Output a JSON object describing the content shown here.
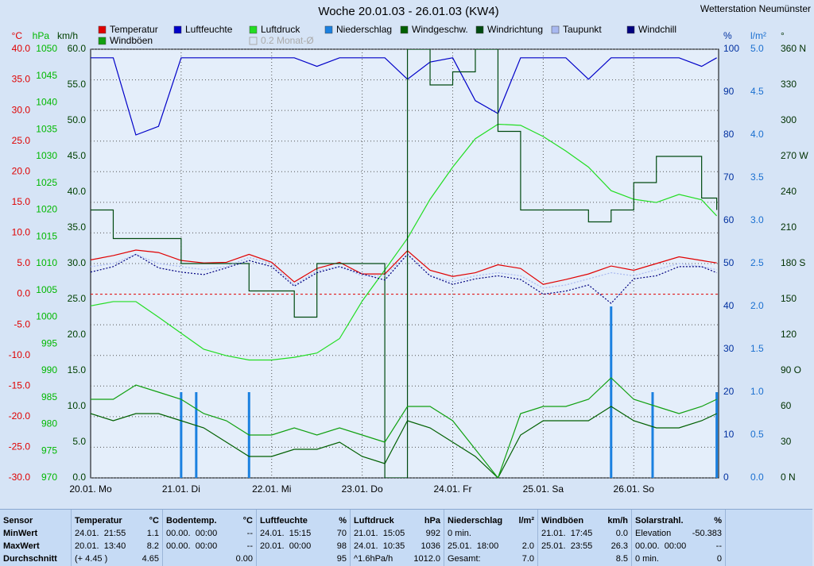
{
  "chart_data": {
    "type": "line",
    "title": "Woche 20.01.03 - 26.01.03 (KW4)",
    "station": "Wetterstation Neumünster",
    "xlim": [
      0,
      166.5
    ],
    "xticks": [
      {
        "value": 0,
        "label": "20.01. Mo"
      },
      {
        "value": 24,
        "label": "21.01. Di"
      },
      {
        "value": 48,
        "label": "22.01. Mi"
      },
      {
        "value": 72,
        "label": "23.01. Do"
      },
      {
        "value": 96,
        "label": "24.01. Fr"
      },
      {
        "value": 120,
        "label": "25.01. Sa"
      },
      {
        "value": 144,
        "label": "26.01. So"
      }
    ],
    "x": [
      0,
      6,
      12,
      18,
      24,
      30,
      36,
      42,
      48,
      54,
      60,
      66,
      72,
      78,
      84,
      90,
      96,
      102,
      108,
      114,
      120,
      126,
      132,
      138,
      144,
      150,
      156,
      162,
      166
    ],
    "grid": true,
    "grid_axis": 0,
    "axes": [
      {
        "unit": "°C",
        "side": "left",
        "color": "#e00000",
        "lim": [
          -30,
          40
        ],
        "ticks": [
          {
            "value": 40,
            "label": "40.0"
          },
          {
            "value": 35,
            "label": "35.0"
          },
          {
            "value": 30,
            "label": "30.0"
          },
          {
            "value": 25,
            "label": "25.0"
          },
          {
            "value": 20,
            "label": "20.0"
          },
          {
            "value": 15,
            "label": "15.0"
          },
          {
            "value": 10,
            "label": "10.0"
          },
          {
            "value": 5,
            "label": "5.0"
          },
          {
            "value": 0,
            "label": "0.0"
          },
          {
            "value": -5,
            "label": "-5.0"
          },
          {
            "value": -10,
            "label": "-10.0"
          },
          {
            "value": -15,
            "label": "-15.0"
          },
          {
            "value": -20,
            "label": "-20.0"
          },
          {
            "value": -25,
            "label": "-25.0"
          },
          {
            "value": -30,
            "label": "-30.0"
          }
        ]
      },
      {
        "unit": "hPa",
        "side": "left",
        "color": "#00b800",
        "lim": [
          970,
          1050
        ],
        "ticks": [
          1050,
          1045,
          1040,
          1035,
          1030,
          1025,
          1020,
          1015,
          1010,
          1005,
          1000,
          995,
          990,
          985,
          980,
          975,
          970
        ]
      },
      {
        "unit": "km/h",
        "side": "left",
        "color": "#004000",
        "lim": [
          0,
          60
        ],
        "ticks": [
          {
            "value": 60,
            "label": "60.0"
          },
          {
            "value": 55,
            "label": "55.0"
          },
          {
            "value": 50,
            "label": "50.0"
          },
          {
            "value": 45,
            "label": "45.0"
          },
          {
            "value": 40,
            "label": "40.0"
          },
          {
            "value": 35,
            "label": "35.0"
          },
          {
            "value": 30,
            "label": "30.0"
          },
          {
            "value": 25,
            "label": "25.0"
          },
          {
            "value": 20,
            "label": "20.0"
          },
          {
            "value": 15,
            "label": "15.0"
          },
          {
            "value": 10,
            "label": "10.0"
          },
          {
            "value": 5,
            "label": "5.0"
          },
          {
            "value": 0,
            "label": "0.0"
          }
        ]
      },
      {
        "unit": "%",
        "side": "right",
        "color": "#0030a0",
        "lim": [
          0,
          100
        ],
        "ticks": [
          100,
          90,
          80,
          70,
          60,
          50,
          40,
          30,
          20,
          10,
          0
        ]
      },
      {
        "unit": "l/m²",
        "side": "right",
        "color": "#1a6fd0",
        "lim": [
          0,
          5
        ],
        "ticks": [
          {
            "value": 5,
            "label": "5.0"
          },
          {
            "value": 4.5,
            "label": "4.5"
          },
          {
            "value": 4,
            "label": "4.0"
          },
          {
            "value": 3.5,
            "label": "3.5"
          },
          {
            "value": 3,
            "label": "3.0"
          },
          {
            "value": 2.5,
            "label": "2.5"
          },
          {
            "value": 2,
            "label": "2.0"
          },
          {
            "value": 1.5,
            "label": "1.5"
          },
          {
            "value": 1,
            "label": "1.0"
          },
          {
            "value": 0.5,
            "label": "0.5"
          },
          {
            "value": 0,
            "label": "0.0"
          }
        ]
      },
      {
        "unit": "°",
        "side": "right",
        "color": "#003000",
        "lim": [
          0,
          360
        ],
        "ticks": [
          {
            "value": 360,
            "label": "360 N"
          },
          330,
          300,
          {
            "value": 270,
            "label": "270 W"
          },
          240,
          210,
          {
            "value": 180,
            "label": "180 S"
          },
          150,
          120,
          {
            "value": 90,
            "label": "90 O"
          },
          60,
          30,
          {
            "value": 0,
            "label": "0   N"
          }
        ]
      }
    ],
    "series": [
      {
        "name": "Temperatur",
        "color": "#e00000",
        "axis": 0,
        "style": "line",
        "values": [
          5.6,
          6.3,
          7.2,
          6.8,
          5.5,
          5.1,
          5.2,
          6.5,
          5.2,
          2.0,
          4.2,
          5.2,
          3.3,
          3.3,
          7.1,
          3.9,
          2.9,
          3.5,
          4.8,
          4.2,
          1.6,
          2.4,
          3.3,
          4.6,
          3.9,
          5.0,
          6.1,
          5.5,
          5.1
        ]
      },
      {
        "name": "Luftfeuchte",
        "color": "#0000c8",
        "axis": 3,
        "style": "line",
        "values": [
          98,
          98,
          80,
          82,
          98,
          98,
          98,
          98,
          98,
          98,
          96,
          98,
          98,
          98,
          93,
          97,
          98,
          88,
          85,
          98,
          98,
          98,
          93,
          98,
          98,
          98,
          98,
          96,
          98
        ]
      },
      {
        "name": "Luftdruck",
        "color": "#22dd22",
        "axis": 1,
        "style": "line",
        "values": [
          1002.1,
          1002.9,
          1002.9,
          1000,
          997,
          994,
          992.8,
          992,
          992,
          992.5,
          993.3,
          996,
          1003,
          1008.8,
          1014.7,
          1022,
          1028,
          1033.3,
          1036,
          1035.8,
          1033.7,
          1031,
          1028,
          1023.6,
          1022,
          1021.4,
          1022.9,
          1021.9,
          1018.9
        ]
      },
      {
        "name": "Niederschlag",
        "color": "#1a80e0",
        "axis": 4,
        "style": "bar",
        "x": [
          24,
          28,
          42,
          138,
          149,
          166
        ],
        "values": [
          1,
          1,
          1,
          2,
          1,
          1
        ]
      },
      {
        "name": "Windgeschw.",
        "color": "#006000",
        "axis": 2,
        "style": "line",
        "values": [
          9,
          8,
          9,
          9,
          8,
          7,
          5,
          3,
          3,
          4,
          4,
          5,
          3,
          2,
          8,
          7,
          5,
          3,
          0,
          6,
          8,
          8,
          8,
          10,
          8,
          7,
          7,
          8,
          9
        ]
      },
      {
        "name": "Windrichtung",
        "color": "#004a10",
        "axis": 5,
        "style": "step",
        "values": [
          225,
          201,
          201,
          201,
          180,
          180,
          180,
          157,
          157,
          135,
          180,
          180,
          180,
          0,
          360,
          330,
          341,
          360,
          291,
          225,
          225,
          225,
          215,
          225,
          248,
          270,
          270,
          235,
          225
        ]
      },
      {
        "name": "Taupunkt",
        "color": "#a8b8f0",
        "axis": 0,
        "style": "dotted",
        "values": [
          4.5,
          5,
          6.5,
          5,
          4.5,
          4,
          4.5,
          6,
          5,
          1.5,
          3.8,
          4.5,
          3,
          3,
          6.5,
          3,
          2,
          3,
          3.5,
          3,
          1,
          1.5,
          2.5,
          3.5,
          3,
          4,
          5,
          4.5,
          4
        ]
      },
      {
        "name": "Windchill",
        "color": "#000080",
        "axis": 0,
        "style": "dotted",
        "values": [
          3.6,
          4.5,
          6.5,
          4.3,
          3.6,
          3.2,
          4.3,
          5.5,
          4.5,
          1.3,
          3.5,
          4.5,
          3.3,
          2.3,
          6.5,
          3,
          1.6,
          2.5,
          3,
          2.4,
          0,
          0.5,
          1.5,
          -1.5,
          2.5,
          3,
          4.5,
          4.5,
          3.5
        ]
      },
      {
        "name": "Windböen",
        "color": "#10a010",
        "axis": 2,
        "style": "line",
        "values": [
          11,
          11,
          13,
          12,
          11,
          9,
          8,
          6,
          6,
          7,
          6,
          7,
          6,
          5,
          10,
          10,
          8,
          4,
          0,
          9,
          10,
          10,
          11,
          14,
          11,
          10,
          9,
          10,
          11
        ]
      }
    ],
    "legend_extra": "0.2 Monat-Ø"
  },
  "table": {
    "columns": [
      {
        "title": "Sensor",
        "rows": [
          {
            "left": "MinWert"
          },
          {
            "left": "MaxWert"
          },
          {
            "left": "Durchschnitt"
          }
        ]
      },
      {
        "title": "Temperatur",
        "unit": "°C",
        "rows": [
          {
            "left": "24.01.  21:55",
            "right": "1.1"
          },
          {
            "left": "20.01.  13:40",
            "right": "8.2"
          },
          {
            "left": "(+ 4.45 )",
            "right": "4.65"
          }
        ]
      },
      {
        "title": "Bodentemp.",
        "unit": "°C",
        "rows": [
          {
            "left": "00.00.  00:00",
            "right": "--"
          },
          {
            "left": "00.00.  00:00",
            "right": "--"
          },
          {
            "right": "0.00"
          }
        ]
      },
      {
        "title": "Luftfeuchte",
        "unit": "%",
        "rows": [
          {
            "left": "24.01.  15:15",
            "right": "70"
          },
          {
            "left": "20.01.  00:00",
            "right": "98"
          },
          {
            "right": "95"
          }
        ]
      },
      {
        "title": "Luftdruck",
        "unit": "hPa",
        "rows": [
          {
            "left": "21.01.  15:05",
            "right": "992"
          },
          {
            "left": "24.01.  10:35",
            "right": "1036"
          },
          {
            "left": "^1.6hPa/h",
            "right": "1012.0"
          }
        ]
      },
      {
        "title": "Niederschlag",
        "unit": "l/m²",
        "rows": [
          {
            "left": "0 min."
          },
          {
            "left": "25.01.  18:00",
            "right": "2.0"
          },
          {
            "left": "Gesamt:",
            "right": "7.0"
          }
        ]
      },
      {
        "title": "Windböen",
        "unit": "km/h",
        "rows": [
          {
            "left": "21.01.  17:45",
            "right": "0.0"
          },
          {
            "left": "25.01.  23:55",
            "right": "26.3"
          },
          {
            "right": "8.5"
          }
        ]
      },
      {
        "title": "Solarstrahl.",
        "unit": "%",
        "rows": [
          {
            "left": "Elevation",
            "right": "-50.383"
          },
          {
            "left": "00.00.  00:00",
            "right": "--"
          },
          {
            "left": "0 min.",
            "right": "0"
          }
        ]
      }
    ]
  }
}
